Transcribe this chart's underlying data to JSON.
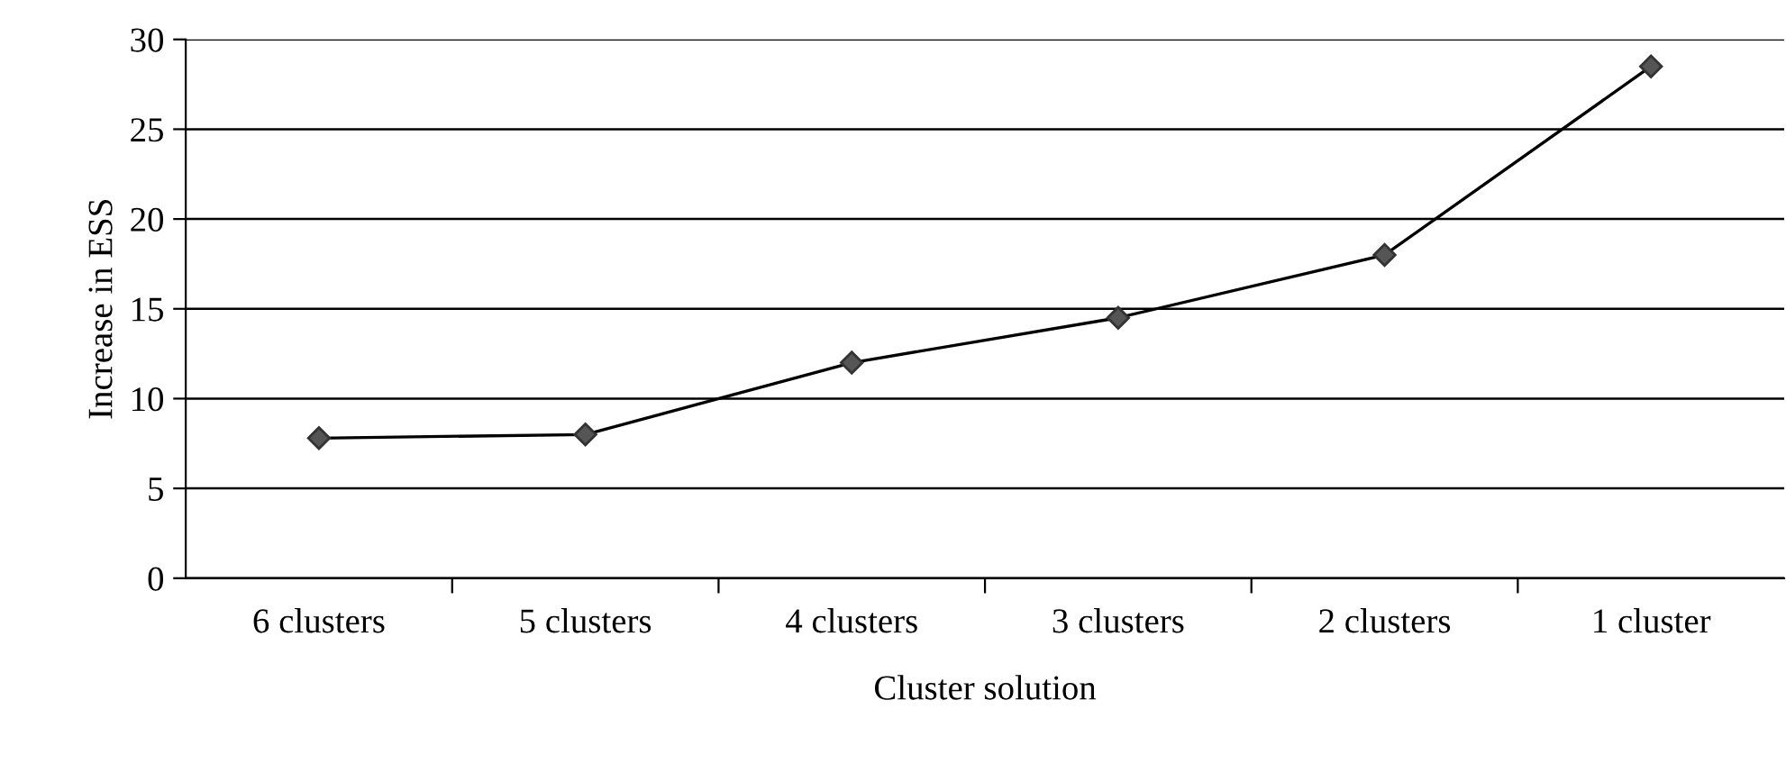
{
  "chart_data": {
    "type": "line",
    "xlabel": "Cluster solution",
    "ylabel": "Increase in ESS",
    "categories": [
      "6 clusters",
      "5 clusters",
      "4 clusters",
      "3 clusters",
      "2 clusters",
      "1 cluster"
    ],
    "series": [
      {
        "color": "#000000",
        "values": [
          7.8,
          8.0,
          12.0,
          14.5,
          18.0,
          28.5
        ]
      }
    ],
    "ylim": [
      0,
      30
    ],
    "yticks": [
      0,
      5,
      10,
      15,
      20,
      25,
      30
    ],
    "grid": "y",
    "marker": "diamond",
    "line_style": "solid",
    "legend": false
  }
}
